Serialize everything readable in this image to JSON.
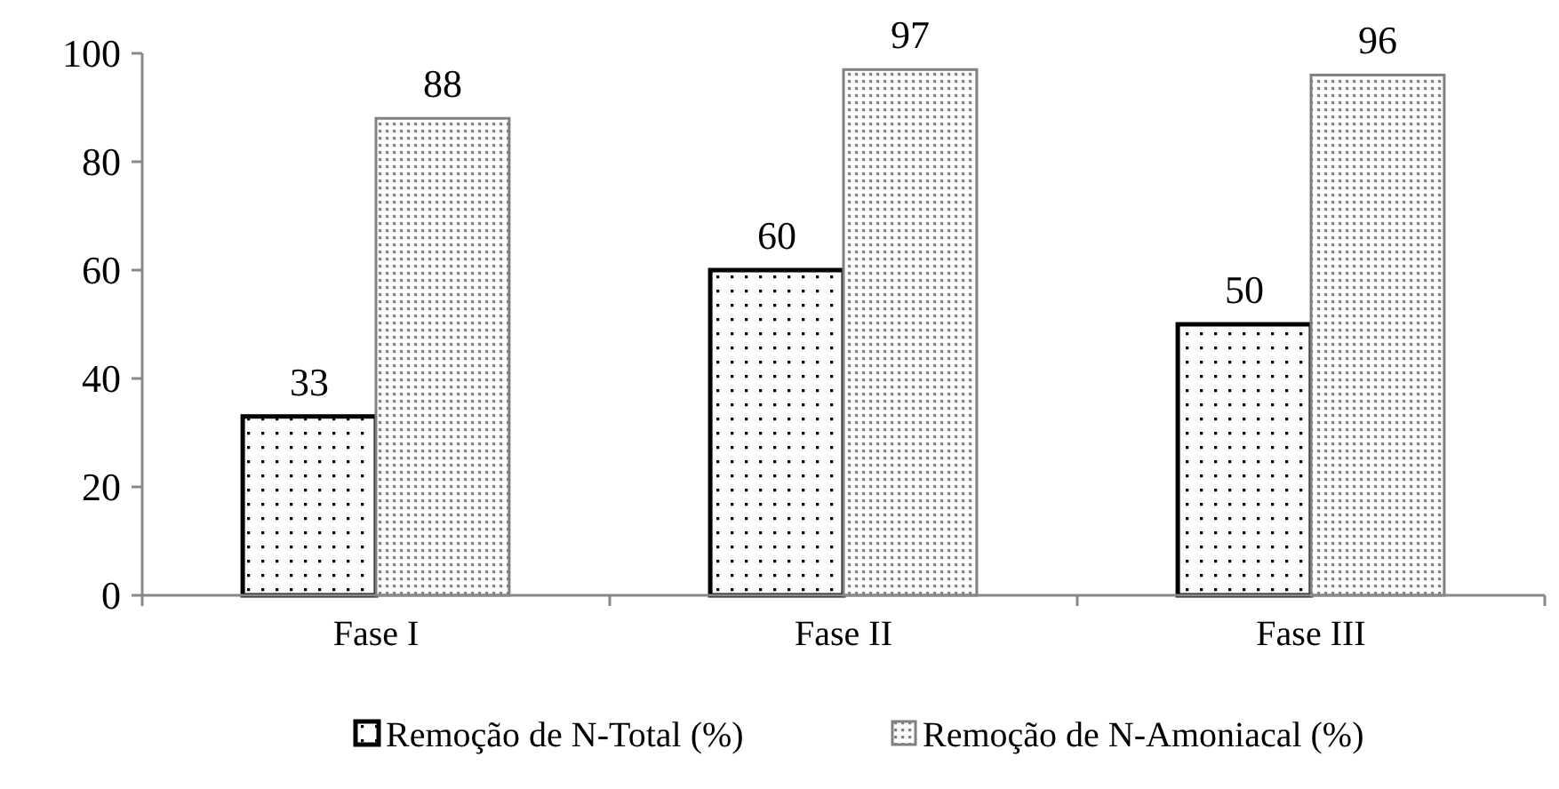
{
  "chart_data": {
    "type": "bar",
    "categories": [
      "Fase I",
      "Fase II",
      "Fase III"
    ],
    "series": [
      {
        "name": "Remoção de N-Total (%)",
        "color": "#000000",
        "values": [
          33,
          60,
          50
        ]
      },
      {
        "name": "Remoção de N-Amoniacal (%)",
        "color": "#808080",
        "values": [
          88,
          97,
          96
        ]
      }
    ],
    "ylim": [
      0,
      100
    ],
    "yticks": [
      0,
      20,
      40,
      60,
      80,
      100
    ],
    "data_labels": true,
    "legend": "bottom"
  }
}
